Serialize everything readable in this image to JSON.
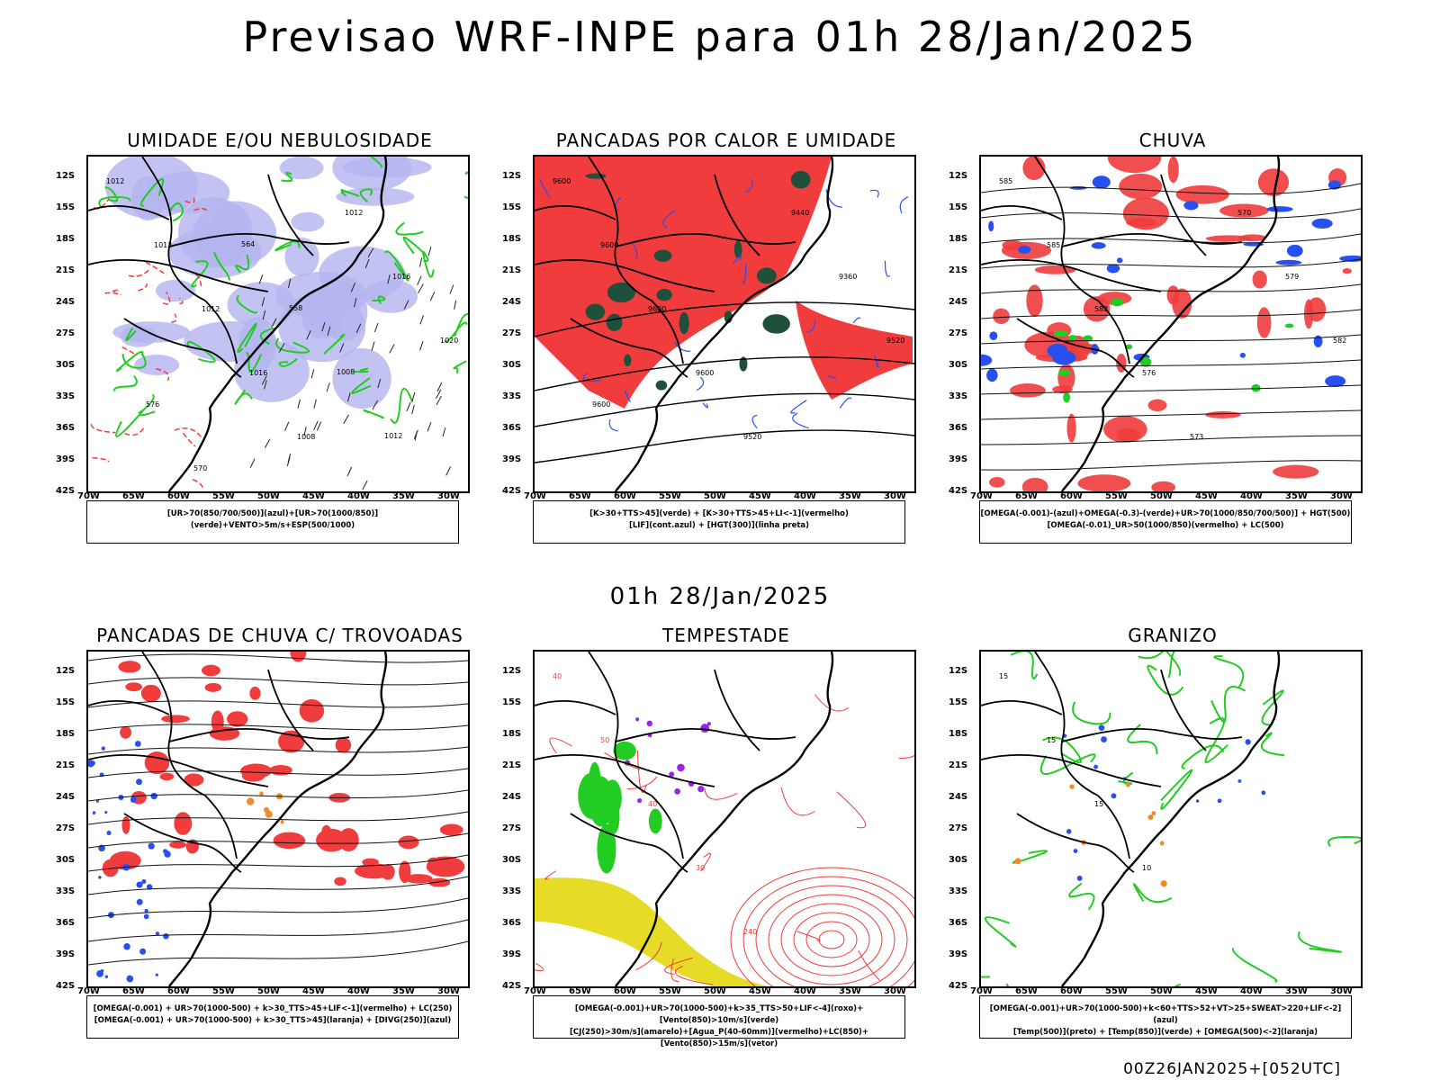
{
  "main_title": "Previsao WRF-INPE  para 01h 28/Jan/2025",
  "mid_title": "01h 28/Jan/2025",
  "footer": "00Z26JAN2025+[052UTC]",
  "axes": {
    "lat_labels": [
      "12S",
      "15S",
      "18S",
      "21S",
      "24S",
      "27S",
      "30S",
      "33S",
      "36S",
      "39S",
      "42S"
    ],
    "lon_labels": [
      "70W",
      "65W",
      "60W",
      "55W",
      "50W",
      "45W",
      "40W",
      "35W",
      "30W"
    ]
  },
  "colors": {
    "red": "#f03c3c",
    "green": "#22cc22",
    "blue": "#2850f0",
    "lavender": "#b4b4f0",
    "yellow": "#e6dc28",
    "purple": "#a020f0",
    "orange": "#f08c28",
    "darkgreen": "#1e503c"
  },
  "panels": [
    {
      "title": "UMIDADE E/OU NEBULOSIDADE",
      "legend": [
        "[UR>70(850/700/500)](azul)+[UR>70(1000/850)](verde)+VENTO>5m/s+ESP(500/1000)"
      ],
      "labels": [
        "1012",
        "1012",
        "1012",
        "1016",
        "1008",
        "1012",
        "1016",
        "1020",
        "576",
        "570",
        "564",
        "558",
        "1008",
        "1012"
      ]
    },
    {
      "title": "PANCADAS POR CALOR E UMIDADE",
      "legend": [
        "[K>30+TTS>45](verde) + [K>30+TTS>45+LI<-1](vermelho)",
        "[LIF](cont.azul) + [HGT(300)](linha preta)"
      ],
      "labels": [
        "9600",
        "9600",
        "9600",
        "9600",
        "9520",
        "9440",
        "9360",
        "9520",
        "9600"
      ]
    },
    {
      "title": "CHUVA",
      "legend": [
        "[OMEGA(-0.001)-(azul)+OMEGA(-0.3)-(verde)+UR>70(1000/850/700/500)] + HGT(500)",
        "[OMEGA(-0.01)_UR>50(1000/850)(vermelho) + LC(500)"
      ],
      "labels": [
        "585",
        "585",
        "582",
        "576",
        "573",
        "570",
        "579",
        "582"
      ]
    },
    {
      "title": "PANCADAS DE CHUVA C/ TROVOADAS",
      "legend": [
        "[OMEGA(-0.001) + UR>70(1000-500) + k>30_TTS>45+LIF<-1](vermelho) + LC(250)",
        "[OMEGA(-0.001) + UR>70(1000-500) + k>30_TTS>45](laranja) + [DIVG(250)](azul)"
      ],
      "labels": []
    },
    {
      "title": "TEMPESTADE",
      "legend": [
        "[OMEGA(-0.001)+UR>70(1000-500)+k>35_TTS>50+LIF<-4](roxo)+[Vento(850)>10m/s](verde)",
        "[CJ(250)>30m/s](amarelo)+[Agua_P(40-60mm)](vermelho)+LC(850)+[Vento(850)>15m/s](vetor)"
      ],
      "labels": [
        "40",
        "50",
        "40",
        "30",
        "240"
      ]
    },
    {
      "title": "GRANIZO",
      "legend": [
        "[OMEGA(-0.001)+UR>70(1000-500)+k<60+TTS>52+VT>25+SWEAT>220+LIF<-2](azul)",
        "[Temp(500)](preto) + [Temp(850)](verde) + [OMEGA(500)<-2](laranja)"
      ],
      "labels": [
        "15",
        "15",
        "15",
        "10"
      ]
    }
  ]
}
